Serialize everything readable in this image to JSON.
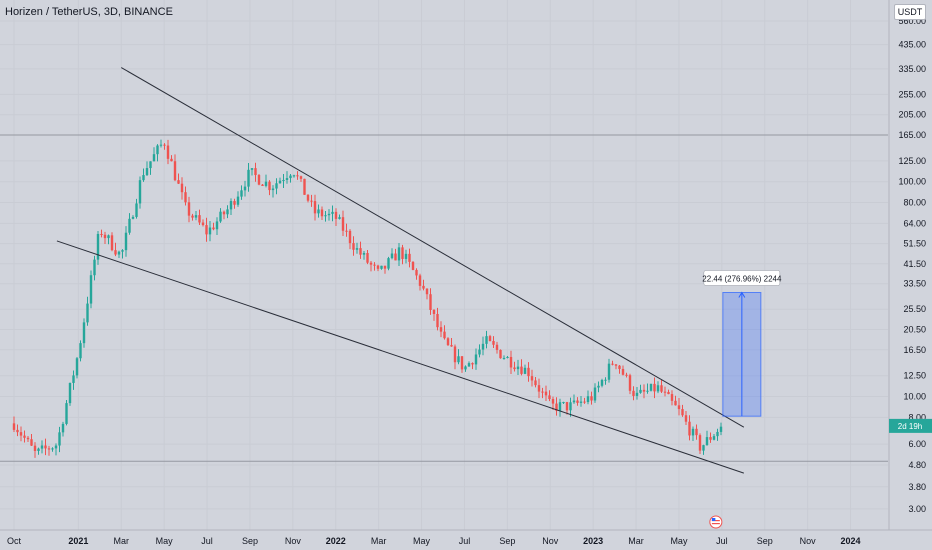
{
  "header": {
    "symbol_title": "Horizen / TetherUS, 3D, BINANCE",
    "currency": "USDT"
  },
  "price_axis": {
    "ticks": [
      "560.00",
      "435.00",
      "335.00",
      "255.00",
      "205.00",
      "165.00",
      "125.00",
      "100.00",
      "80.00",
      "64.00",
      "51.50",
      "41.50",
      "33.50",
      "25.50",
      "20.50",
      "16.50",
      "12.50",
      "10.00",
      "8.00",
      "6.00",
      "4.80",
      "3.80",
      "3.00",
      "2.40"
    ],
    "current_price_label": "2d 19h",
    "current_price_color": "#26a69a"
  },
  "time_axis": {
    "labels": [
      "Oct",
      "2021",
      "Mar",
      "May",
      "Jul",
      "Sep",
      "Nov",
      "2022",
      "Mar",
      "May",
      "Jul",
      "Sep",
      "Nov",
      "2023",
      "Mar",
      "May",
      "Jul",
      "Sep",
      "Nov",
      "2024"
    ]
  },
  "measure_tool": {
    "label": "22.44 (276.96%) 2244",
    "from_price": 8.1,
    "to_price": 30.5,
    "fill_color": "#2962ff"
  },
  "colors": {
    "up": "#26a69a",
    "down": "#ef5350",
    "trendline": "#2a2e39",
    "background": "#d1d4dc"
  },
  "chart_data": {
    "type": "candlestick",
    "title": "Horizen / TetherUS, 3D, BINANCE",
    "y_scale": "log",
    "ylim": [
      2.4,
      560
    ],
    "x_range": [
      "2020-10",
      "2024-01"
    ],
    "approx_path": [
      {
        "t": "2020-10",
        "close": 7.5
      },
      {
        "t": "2020-11",
        "close": 5.4
      },
      {
        "t": "2020-12",
        "close": 6.0
      },
      {
        "t": "2021-01",
        "close": 16
      },
      {
        "t": "2021-02",
        "close": 60
      },
      {
        "t": "2021-03",
        "close": 45
      },
      {
        "t": "2021-04",
        "close": 110
      },
      {
        "t": "2021-05",
        "close": 155
      },
      {
        "t": "2021-06",
        "close": 75
      },
      {
        "t": "2021-07",
        "close": 58
      },
      {
        "t": "2021-08",
        "close": 75
      },
      {
        "t": "2021-09",
        "close": 110
      },
      {
        "t": "2021-10",
        "close": 95
      },
      {
        "t": "2021-11",
        "close": 115
      },
      {
        "t": "2021-12",
        "close": 72
      },
      {
        "t": "2022-01",
        "close": 68
      },
      {
        "t": "2022-02",
        "close": 48
      },
      {
        "t": "2022-03",
        "close": 37
      },
      {
        "t": "2022-04",
        "close": 48
      },
      {
        "t": "2022-05",
        "close": 33
      },
      {
        "t": "2022-06",
        "close": 18
      },
      {
        "t": "2022-07",
        "close": 13.5
      },
      {
        "t": "2022-08",
        "close": 18
      },
      {
        "t": "2022-09",
        "close": 15
      },
      {
        "t": "2022-10",
        "close": 13
      },
      {
        "t": "2022-11",
        "close": 9
      },
      {
        "t": "2022-12",
        "close": 9
      },
      {
        "t": "2023-01",
        "close": 10
      },
      {
        "t": "2023-02",
        "close": 15
      },
      {
        "t": "2023-03",
        "close": 10
      },
      {
        "t": "2023-04",
        "close": 11
      },
      {
        "t": "2023-05",
        "close": 8.5
      },
      {
        "t": "2023-06",
        "close": 5.8
      },
      {
        "t": "2023-07",
        "close": 7.3
      }
    ],
    "horizontal_lines": [
      165,
      5.0
    ],
    "trendlines": [
      {
        "from": {
          "t": "2021-03",
          "price": 340
        },
        "to": {
          "t": "2023-07",
          "price": 7.2
        }
      },
      {
        "from": {
          "t": "2020-12",
          "price": 53
        },
        "to": {
          "t": "2023-07",
          "price": 4.4
        }
      }
    ]
  }
}
